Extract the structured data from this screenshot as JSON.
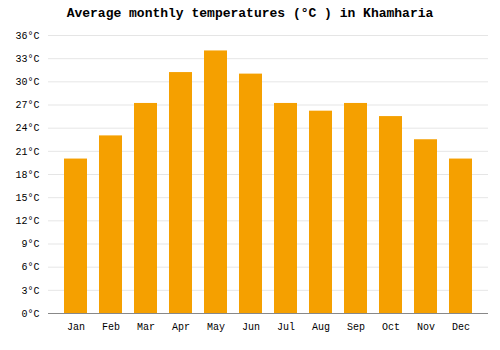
{
  "chart_data": {
    "type": "bar",
    "title": "Average monthly temperatures (°C ) in Khamharia",
    "categories": [
      "Jan",
      "Feb",
      "Mar",
      "Apr",
      "May",
      "Jun",
      "Jul",
      "Aug",
      "Sep",
      "Oct",
      "Nov",
      "Dec"
    ],
    "values": [
      20.0,
      23.0,
      27.2,
      31.2,
      34.0,
      31.0,
      27.2,
      26.2,
      27.2,
      25.5,
      22.5,
      20.0
    ],
    "color": "#F5A000",
    "ylim": [
      0,
      36
    ],
    "yticks": [
      {
        "value": 0,
        "label": "0°C"
      },
      {
        "value": 3,
        "label": "3°C"
      },
      {
        "value": 6,
        "label": "6°C"
      },
      {
        "value": 9,
        "label": "9°C"
      },
      {
        "value": 12,
        "label": "12°C"
      },
      {
        "value": 15,
        "label": "15°C"
      },
      {
        "value": 18,
        "label": "18°C"
      },
      {
        "value": 21,
        "label": "21°C"
      },
      {
        "value": 24,
        "label": "24°C"
      },
      {
        "value": 27,
        "label": "27°C"
      },
      {
        "value": 30,
        "label": "30°C"
      },
      {
        "value": 33,
        "label": "33°C"
      },
      {
        "value": 36,
        "label": "36°C"
      }
    ],
    "grid": true
  }
}
